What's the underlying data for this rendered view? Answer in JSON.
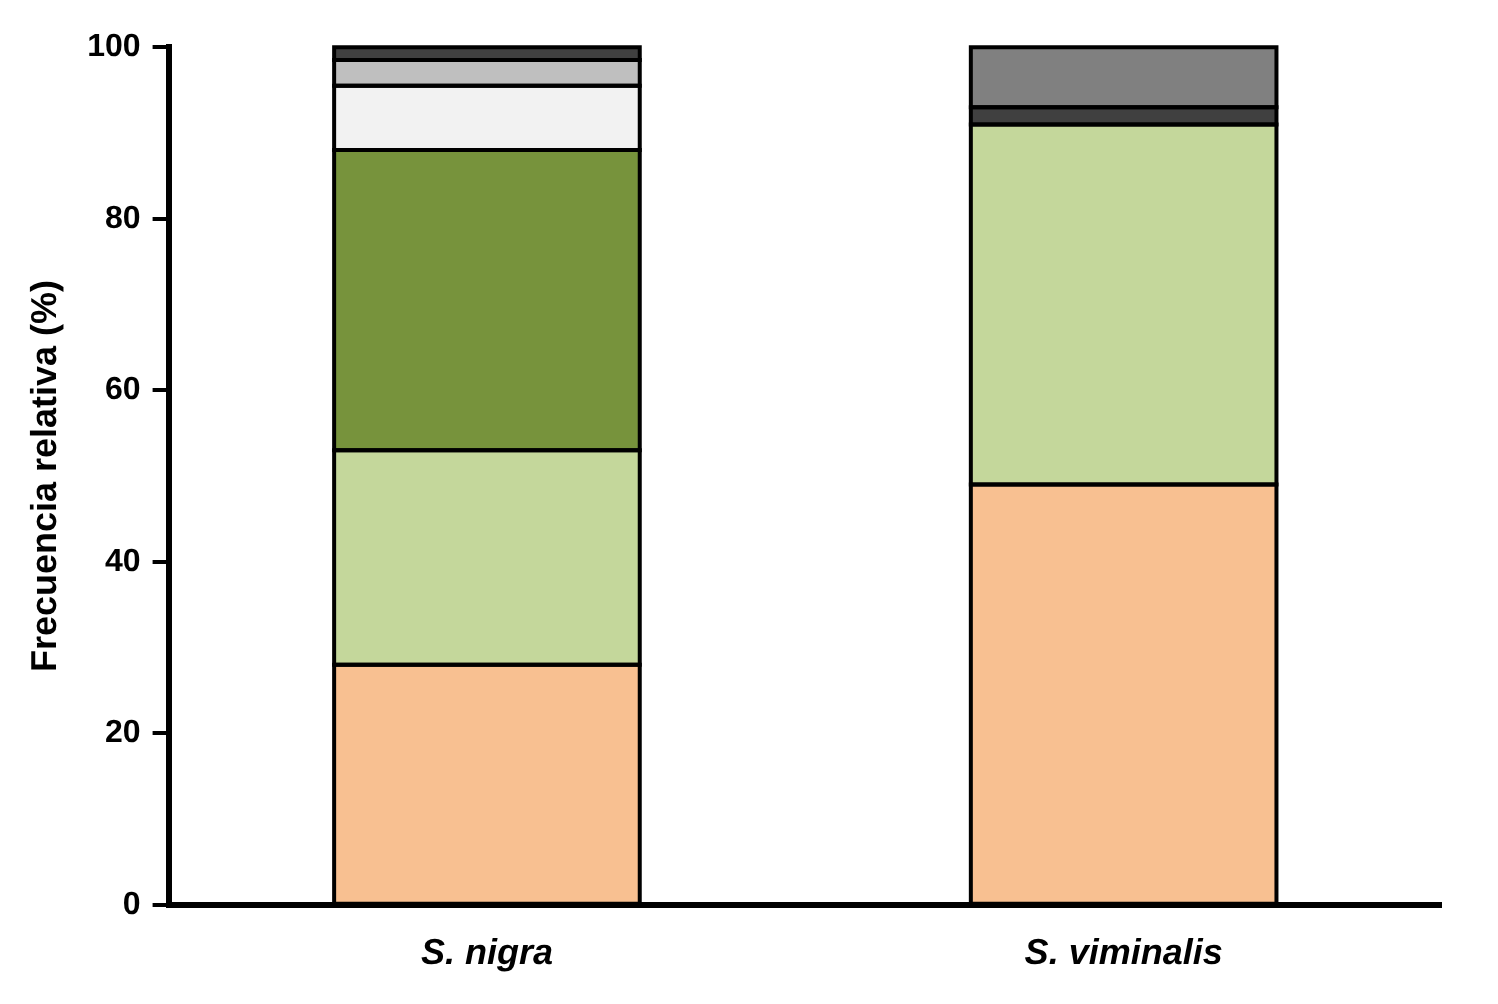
{
  "chart_data": {
    "type": "bar",
    "stacked": true,
    "ylabel": "Frecuencia relativa (%)",
    "categories": [
      "S. nigra",
      "S. viminalis"
    ],
    "ylim": [
      0,
      100
    ],
    "yticks": [
      0,
      20,
      40,
      60,
      80,
      100
    ],
    "grid": false,
    "legend": false,
    "series": [
      {
        "color": "#f8c091",
        "values": [
          28,
          49
        ]
      },
      {
        "color": "#c4d79b",
        "values": [
          25,
          42
        ]
      },
      {
        "color": "#77933c",
        "values": [
          35,
          null
        ]
      },
      {
        "color": "#f2f2f2",
        "values": [
          7.5,
          null
        ]
      },
      {
        "color": "#bfbfbf",
        "values": [
          3,
          null
        ]
      },
      {
        "color": "#404040",
        "values": [
          1.5,
          2
        ]
      },
      {
        "color": "#808080",
        "values": [
          null,
          7
        ]
      }
    ]
  }
}
